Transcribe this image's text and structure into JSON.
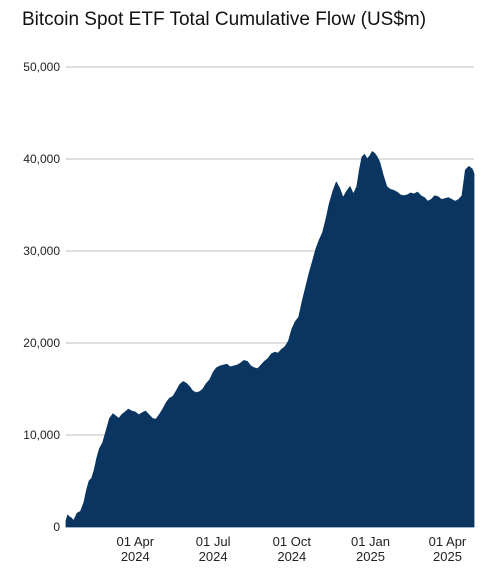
{
  "chart_data": {
    "type": "area",
    "title": "Bitcoin Spot ETF Total Cumulative Flow (US$m)",
    "xlabel": "",
    "ylabel": "",
    "ylim": [
      0,
      50000
    ],
    "yticks": [
      0,
      10000,
      20000,
      30000,
      40000,
      50000
    ],
    "ytick_labels": [
      "0",
      "10,000",
      "20,000",
      "30,000",
      "40,000",
      "50,000"
    ],
    "xlim": [
      "2024-01-11",
      "2025-05-02"
    ],
    "xticks": [
      {
        "date": "2024-04-01",
        "line1": "01 Apr",
        "line2": "2024"
      },
      {
        "date": "2024-07-01",
        "line1": "01 Jul",
        "line2": "2024"
      },
      {
        "date": "2024-10-01",
        "line1": "01 Oct",
        "line2": "2024"
      },
      {
        "date": "2025-01-01",
        "line1": "01 Jan",
        "line2": "2025"
      },
      {
        "date": "2025-04-01",
        "line1": "01 Apr",
        "line2": "2025"
      }
    ],
    "grid": true,
    "colors": {
      "area": "#0a3561",
      "grid": "#cccccc"
    },
    "series": [
      {
        "x": [
          "2024-01-11",
          "2024-01-13",
          "2024-01-15",
          "2024-01-17",
          "2024-01-20",
          "2024-01-24",
          "2024-01-28",
          "2024-02-01",
          "2024-02-04",
          "2024-02-07",
          "2024-02-10",
          "2024-02-13",
          "2024-02-16",
          "2024-02-19",
          "2024-02-23",
          "2024-02-27",
          "2024-03-02",
          "2024-03-06",
          "2024-03-10",
          "2024-03-13",
          "2024-03-16",
          "2024-03-20",
          "2024-03-24",
          "2024-03-28",
          "2024-04-01",
          "2024-04-05",
          "2024-04-09",
          "2024-04-13",
          "2024-04-17",
          "2024-04-21",
          "2024-04-25",
          "2024-04-29",
          "2024-05-03",
          "2024-05-07",
          "2024-05-11",
          "2024-05-15",
          "2024-05-19",
          "2024-05-23",
          "2024-05-27",
          "2024-05-31",
          "2024-06-04",
          "2024-06-07",
          "2024-06-11",
          "2024-06-15",
          "2024-06-19",
          "2024-06-23",
          "2024-06-27",
          "2024-07-01",
          "2024-07-05",
          "2024-07-09",
          "2024-07-13",
          "2024-07-17",
          "2024-07-21",
          "2024-07-25",
          "2024-07-29",
          "2024-08-02",
          "2024-08-06",
          "2024-08-10",
          "2024-08-14",
          "2024-08-18",
          "2024-08-22",
          "2024-08-26",
          "2024-08-30",
          "2024-09-03",
          "2024-09-07",
          "2024-09-11",
          "2024-09-15",
          "2024-09-19",
          "2024-09-23",
          "2024-09-27",
          "2024-10-01",
          "2024-10-05",
          "2024-10-09",
          "2024-10-13",
          "2024-10-17",
          "2024-10-21",
          "2024-10-25",
          "2024-10-29",
          "2024-11-02",
          "2024-11-06",
          "2024-11-10",
          "2024-11-14",
          "2024-11-18",
          "2024-11-22",
          "2024-11-26",
          "2024-11-30",
          "2024-12-04",
          "2024-12-08",
          "2024-12-12",
          "2024-12-16",
          "2024-12-19",
          "2024-12-22",
          "2024-12-25",
          "2024-12-28",
          "2024-12-31",
          "2025-01-03",
          "2025-01-06",
          "2025-01-09",
          "2025-01-12",
          "2025-01-16",
          "2025-01-20",
          "2025-01-24",
          "2025-01-28",
          "2025-02-01",
          "2025-02-05",
          "2025-02-09",
          "2025-02-13",
          "2025-02-17",
          "2025-02-21",
          "2025-02-25",
          "2025-03-01",
          "2025-03-05",
          "2025-03-09",
          "2025-03-13",
          "2025-03-17",
          "2025-03-21",
          "2025-03-25",
          "2025-03-29",
          "2025-04-02",
          "2025-04-06",
          "2025-04-10",
          "2025-04-14",
          "2025-04-18",
          "2025-04-22",
          "2025-04-26",
          "2025-04-30",
          "2025-05-02"
        ],
        "values": [
          700,
          1300,
          1100,
          1000,
          700,
          1500,
          1700,
          2700,
          4000,
          5000,
          5300,
          6200,
          7500,
          8500,
          9200,
          10500,
          11800,
          12300,
          12000,
          11800,
          12200,
          12500,
          12800,
          12600,
          12500,
          12200,
          12400,
          12600,
          12200,
          11800,
          11700,
          12200,
          12800,
          13500,
          14000,
          14200,
          14800,
          15500,
          15800,
          15600,
          15200,
          14800,
          14600,
          14700,
          15000,
          15600,
          16000,
          16800,
          17300,
          17500,
          17600,
          17700,
          17400,
          17500,
          17600,
          17800,
          18100,
          18000,
          17500,
          17300,
          17200,
          17600,
          18000,
          18300,
          18800,
          19000,
          18900,
          19300,
          19600,
          20200,
          21500,
          22300,
          22800,
          24500,
          26000,
          27500,
          28800,
          30200,
          31200,
          32000,
          33500,
          35200,
          36500,
          37500,
          36800,
          35800,
          36500,
          37000,
          36200,
          37000,
          38800,
          40200,
          40500,
          40000,
          40300,
          40800,
          40600,
          40200,
          39600,
          38200,
          37000,
          36700,
          36600,
          36400,
          36100,
          36000,
          36100,
          36300,
          36200,
          36400,
          36000,
          35800,
          35400,
          35600,
          36000,
          35900,
          35600,
          35700,
          35800,
          35600,
          35400,
          35600,
          36000,
          38800,
          39200,
          38900,
          38400
        ]
      }
    ]
  }
}
